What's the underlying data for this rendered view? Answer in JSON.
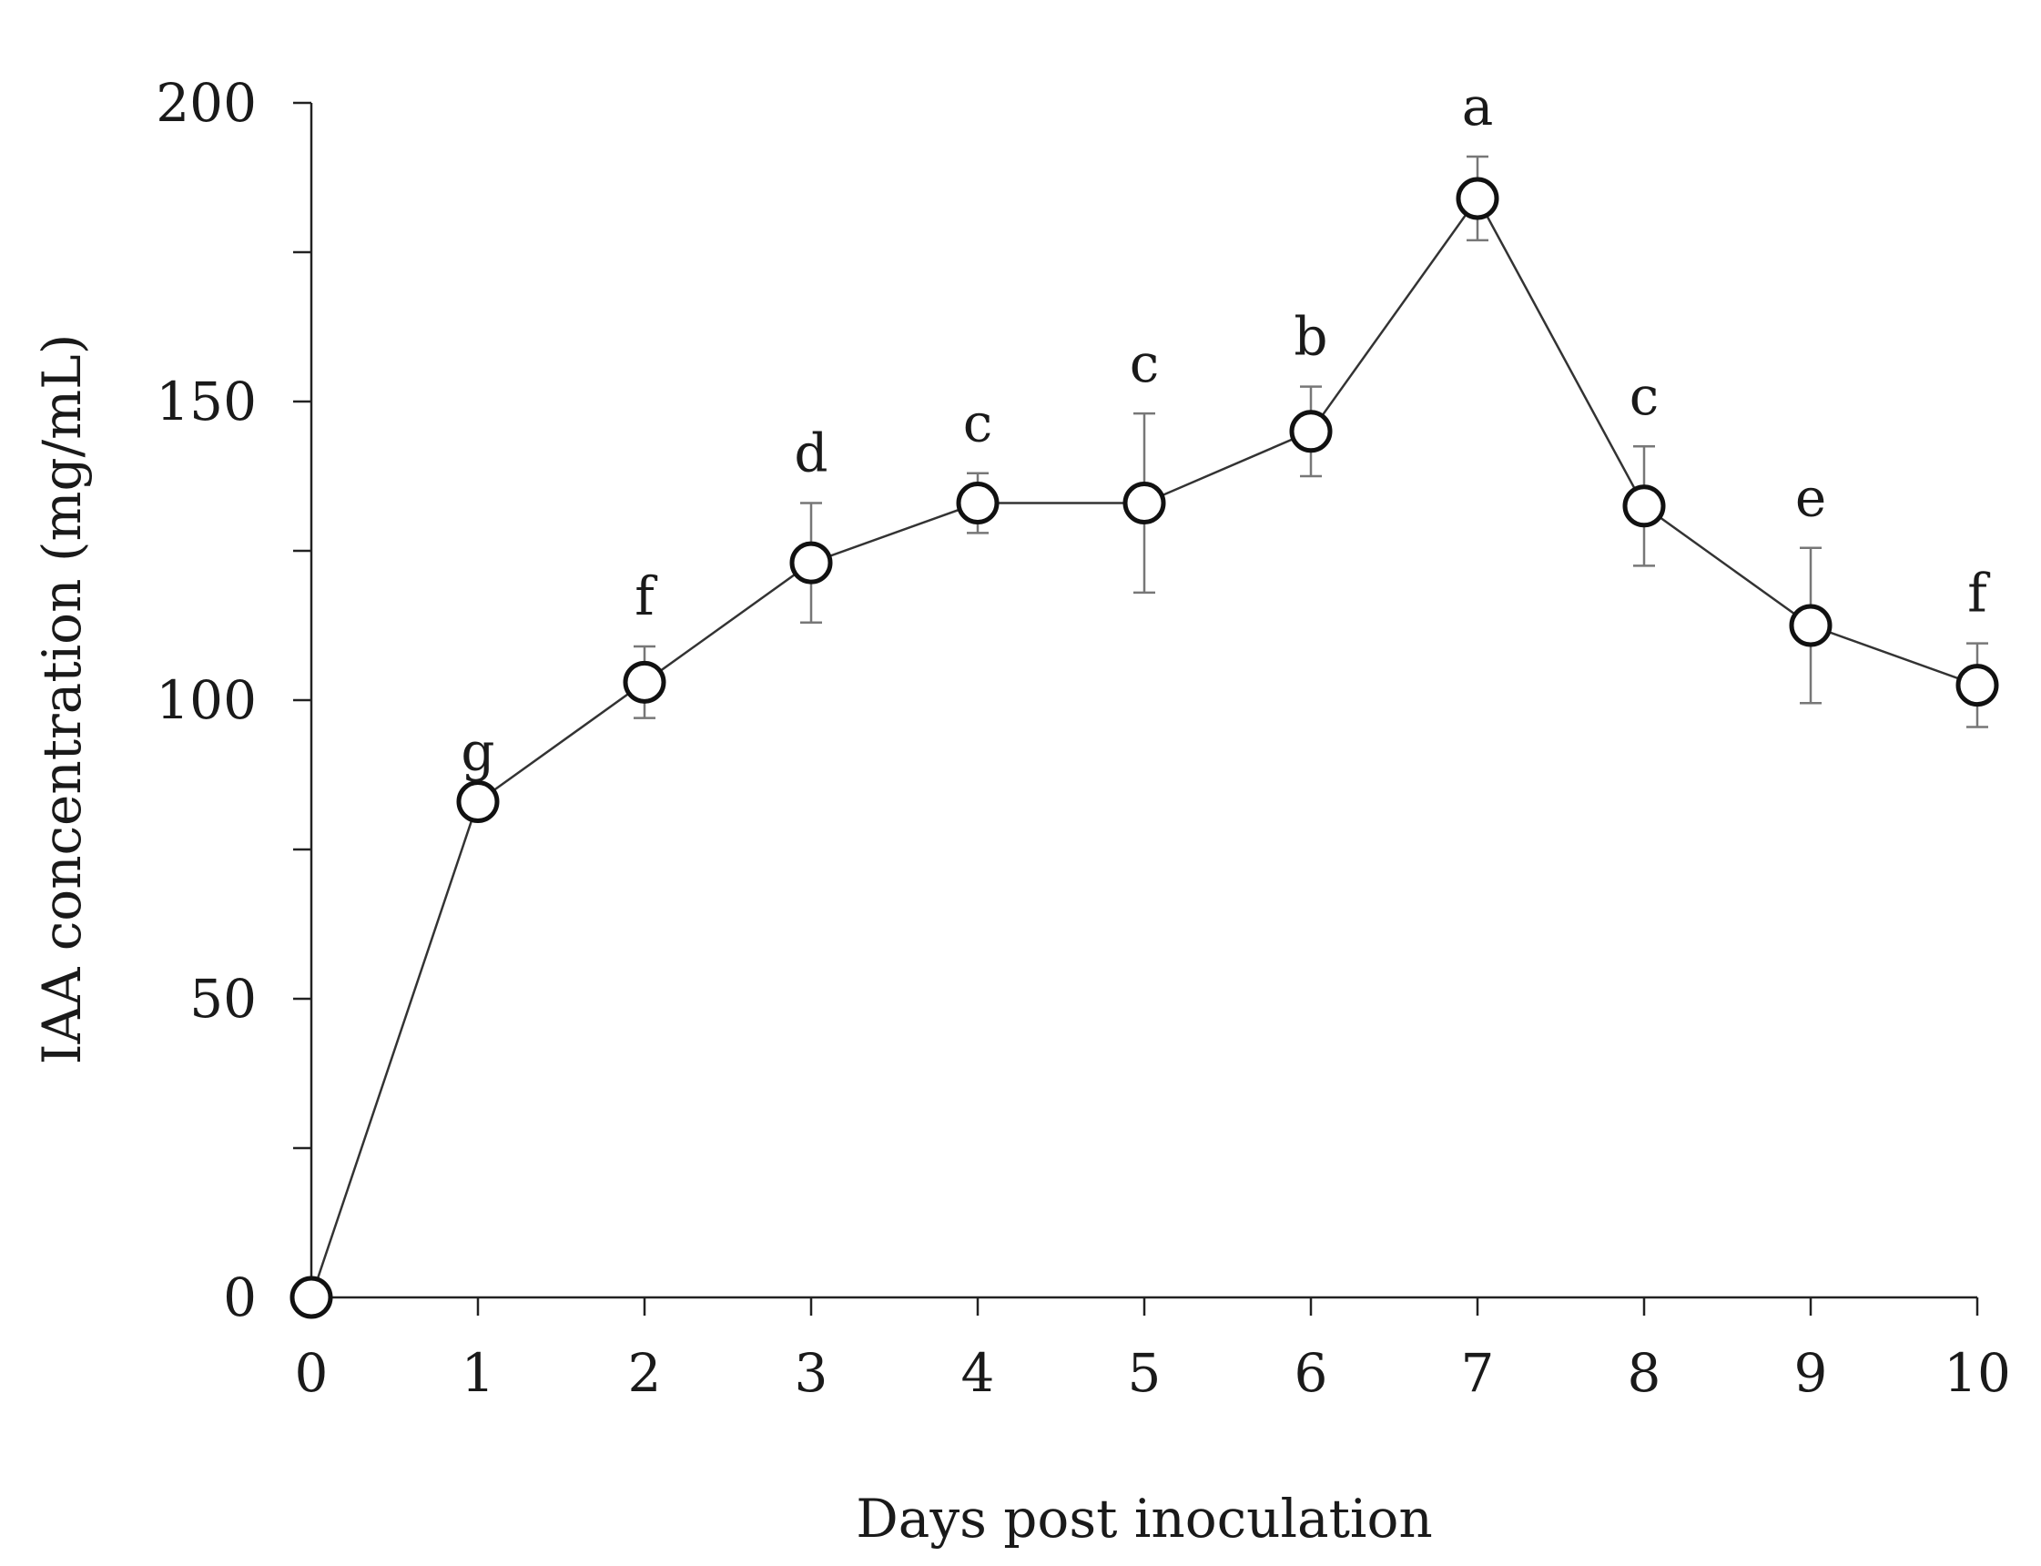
{
  "chart_data": {
    "type": "line",
    "title": "",
    "xlabel": "Days post inoculation",
    "ylabel": "IAA concentration (mg/mL)",
    "xlim": [
      0,
      10
    ],
    "ylim": [
      0,
      200
    ],
    "x_ticks": [
      "0",
      "1",
      "2",
      "3",
      "4",
      "5",
      "6",
      "7",
      "8",
      "9",
      "10"
    ],
    "y_ticks": [
      "0",
      "50",
      "100",
      "150",
      "200"
    ],
    "y_minor_step": 25,
    "grid": false,
    "series": [
      {
        "name": "IAA concentration",
        "marker": "open-circle",
        "x": [
          0,
          1,
          2,
          3,
          4,
          5,
          6,
          7,
          8,
          9,
          10
        ],
        "values": [
          0,
          83,
          103,
          123,
          133,
          133,
          145,
          184,
          132.5,
          112.5,
          102.5
        ],
        "error": [
          0,
          0,
          6,
          10,
          5,
          15,
          7.5,
          7,
          10,
          13,
          7
        ],
        "significance": [
          "",
          "g",
          "f",
          "d",
          "c",
          "c",
          "b",
          "a",
          "c",
          "e",
          "f"
        ]
      }
    ]
  }
}
